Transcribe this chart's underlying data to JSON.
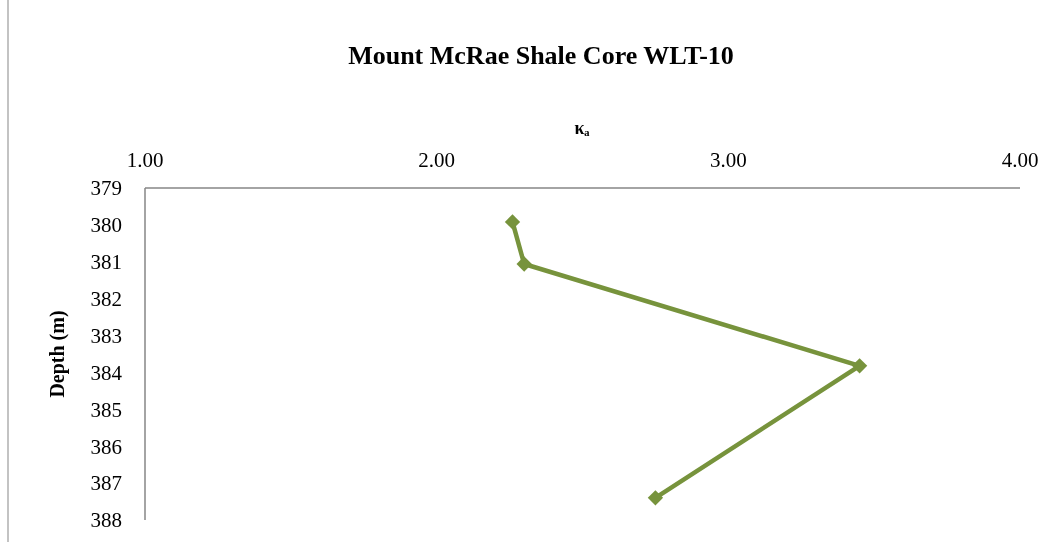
{
  "chart_data": {
    "type": "line",
    "title": "Mount McRae Shale Core WLT-10",
    "xlabel": "κₐ",
    "ylabel": "Depth (m)",
    "x": [
      2.26,
      2.3,
      3.45,
      2.75
    ],
    "series": [
      {
        "color": "#77933c",
        "values": [
          379.92,
          381.06,
          383.82,
          387.4
        ]
      }
    ],
    "xlim": [
      1,
      4
    ],
    "xticks": [
      {
        "value": 1,
        "label": "1.00"
      },
      {
        "value": 2,
        "label": "2.00"
      },
      {
        "value": 3,
        "label": "3.00"
      },
      {
        "value": 4,
        "label": "4.00"
      }
    ],
    "ylim": [
      388,
      379
    ],
    "yticks": [
      379,
      380,
      381,
      382,
      383,
      384,
      385,
      386,
      387,
      388
    ],
    "marker": "diamond",
    "line_style": "solid"
  }
}
